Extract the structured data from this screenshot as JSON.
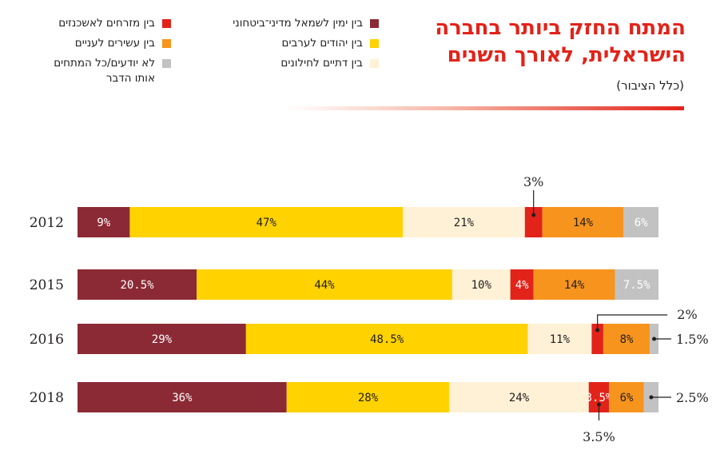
{
  "header": {
    "title": "המתח החזק ביותר בחברה הישראלית, לאורך השנים",
    "subtitle": "(כלל הציבור)"
  },
  "legend": [
    {
      "label": "בין ימין לשמאל מדיני־ביטחוני",
      "color": "#8b2a35"
    },
    {
      "label": "בין יהודים לערבים",
      "color": "#ffd200"
    },
    {
      "label": "בין דתיים לחילונים",
      "color": "#fff1d6"
    },
    {
      "label": "בין מזרחים לאשכנזים",
      "color": "#e2231a"
    },
    {
      "label": "בין עשירים לעניים",
      "color": "#f7941d"
    },
    {
      "label": "לא יודעים/כל המתחים אותו הדבר",
      "color": "#c2c2c2"
    }
  ],
  "chart_data": {
    "type": "bar",
    "stacked": true,
    "orientation": "horizontal",
    "title": "המתח החזק ביותר בחברה הישראלית, לאורך השנים",
    "subtitle": "(כלל הציבור)",
    "categories": [
      "2012",
      "2015",
      "2016",
      "2018"
    ],
    "xlim": [
      0,
      100
    ],
    "series": [
      {
        "name": "בין ימין לשמאל מדיני־ביטחוני",
        "color": "#8b2a35",
        "text_color": "#ffffff",
        "values": [
          9,
          20.5,
          29,
          36
        ],
        "labels": [
          "9%",
          "20.5%",
          "29%",
          "36%"
        ]
      },
      {
        "name": "בין יהודים לערבים",
        "color": "#ffd200",
        "text_color": "#231f20",
        "values": [
          47,
          44,
          48.5,
          28
        ],
        "labels": [
          "47%",
          "44%",
          "48.5%",
          "28%"
        ]
      },
      {
        "name": "בין דתיים לחילונים",
        "color": "#fff1d6",
        "text_color": "#231f20",
        "values": [
          21,
          10,
          11,
          24
        ],
        "labels": [
          "21%",
          "10%",
          "11%",
          "24%"
        ]
      },
      {
        "name": "בין מזרחים לאשכנזים",
        "color": "#e2231a",
        "text_color": "#ffffff",
        "values": [
          3,
          4,
          2,
          3.5
        ],
        "labels": [
          "3%",
          "4%",
          "2%",
          "3.5%"
        ]
      },
      {
        "name": "בין עשירים לעניים",
        "color": "#f7941d",
        "text_color": "#231f20",
        "values": [
          14,
          14,
          8,
          6
        ],
        "labels": [
          "14%",
          "14%",
          "8%",
          "6%"
        ]
      },
      {
        "name": "לא יודעים/כל המתחים אותו הדבר",
        "color": "#c2c2c2",
        "text_color": "#ffffff",
        "values": [
          6,
          7.5,
          1.5,
          2.5
        ],
        "labels": [
          "6%",
          "7.5%",
          "1.5%",
          "2.5%"
        ]
      }
    ],
    "callouts": [
      {
        "category": "2012",
        "series_index": 3,
        "label": "3%",
        "side": "above"
      },
      {
        "category": "2016",
        "series_index": 3,
        "label": "2%",
        "side": "above-right"
      },
      {
        "category": "2016",
        "series_index": 5,
        "label": "1.5%",
        "side": "right"
      },
      {
        "category": "2018",
        "series_index": 5,
        "label": "2.5%",
        "side": "right"
      },
      {
        "category": "2018",
        "series_index": 3,
        "label": "3.5%",
        "side": "below"
      }
    ]
  }
}
